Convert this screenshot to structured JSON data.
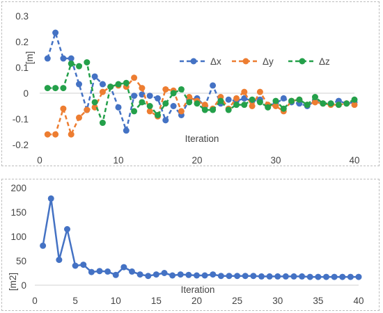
{
  "chart_data": [
    {
      "type": "line",
      "title": "",
      "xlabel": "Iteration",
      "ylabel": "[m]",
      "xlim": [
        0,
        40
      ],
      "ylim": [
        -0.2,
        0.3
      ],
      "xticks": [
        0,
        10,
        20,
        30,
        40
      ],
      "yticks": [
        -0.2,
        -0.1,
        0,
        0.1,
        0.2,
        0.3
      ],
      "ytick_labels": [
        "-0.2",
        "-0.1",
        "0",
        "0.1",
        "0.2",
        "0.3"
      ],
      "legend_position": "inside-right",
      "line_style": "dashed",
      "grid": false,
      "x": [
        1,
        2,
        3,
        4,
        5,
        6,
        7,
        8,
        9,
        10,
        11,
        12,
        13,
        14,
        15,
        16,
        17,
        18,
        19,
        20,
        21,
        22,
        23,
        24,
        25,
        26,
        27,
        28,
        29,
        30,
        31,
        32,
        33,
        34,
        35,
        36,
        37,
        38,
        39,
        40
      ],
      "series": [
        {
          "name": "Δx",
          "color": "#4472c4",
          "values": [
            0.135,
            0.235,
            0.135,
            0.135,
            0.035,
            -0.065,
            0.065,
            0.035,
            0.025,
            -0.055,
            -0.145,
            -0.01,
            -0.005,
            -0.01,
            -0.02,
            -0.105,
            -0.05,
            -0.085,
            -0.025,
            -0.02,
            -0.05,
            0.03,
            -0.04,
            -0.025,
            -0.03,
            -0.02,
            -0.03,
            -0.025,
            -0.05,
            -0.04,
            -0.02,
            -0.035,
            -0.04,
            -0.05,
            -0.03,
            -0.04,
            -0.04,
            -0.03,
            -0.04,
            -0.035
          ]
        },
        {
          "name": "Δy",
          "color": "#ed7d31",
          "values": [
            -0.16,
            -0.16,
            -0.06,
            -0.16,
            -0.095,
            -0.065,
            -0.055,
            0.005,
            0.025,
            0.03,
            0.025,
            0.06,
            0.02,
            -0.07,
            -0.09,
            0.015,
            0.01,
            -0.07,
            -0.015,
            -0.03,
            -0.045,
            -0.06,
            -0.015,
            -0.06,
            -0.02,
            0.005,
            -0.05,
            0.005,
            -0.045,
            -0.05,
            -0.07,
            -0.03,
            -0.025,
            -0.045,
            -0.035,
            -0.04,
            -0.045,
            -0.045,
            -0.04,
            -0.045
          ]
        },
        {
          "name": "Δz",
          "color": "#24a04a",
          "values": [
            0.02,
            0.02,
            0.02,
            0.115,
            0.105,
            0.12,
            -0.035,
            -0.115,
            0.025,
            0.035,
            0.04,
            -0.07,
            -0.035,
            -0.05,
            -0.085,
            -0.04,
            0.0,
            0.015,
            -0.035,
            -0.04,
            -0.065,
            -0.065,
            -0.03,
            -0.065,
            -0.045,
            -0.045,
            -0.025,
            -0.035,
            -0.055,
            -0.03,
            -0.06,
            -0.03,
            -0.025,
            -0.045,
            -0.015,
            -0.04,
            -0.04,
            -0.045,
            -0.04,
            -0.025
          ]
        }
      ]
    },
    {
      "type": "line",
      "title": "",
      "xlabel": "Iteration",
      "ylabel": "[m2]",
      "xlim": [
        0,
        40
      ],
      "ylim": [
        0,
        200
      ],
      "xticks": [
        0,
        5,
        10,
        15,
        20,
        25,
        30,
        35,
        40
      ],
      "yticks": [
        0,
        50,
        100,
        150,
        200
      ],
      "ytick_labels": [
        "0",
        "50",
        "100",
        "150",
        "200"
      ],
      "line_style": "solid",
      "grid": false,
      "x": [
        1,
        2,
        3,
        4,
        5,
        6,
        7,
        8,
        9,
        10,
        11,
        12,
        13,
        14,
        15,
        16,
        17,
        18,
        19,
        20,
        21,
        22,
        23,
        24,
        25,
        26,
        27,
        28,
        29,
        30,
        31,
        32,
        33,
        34,
        35,
        36,
        37,
        38,
        39,
        40
      ],
      "series": [
        {
          "color": "#4472c4",
          "values": [
            81,
            178,
            52,
            115,
            40,
            42,
            27,
            29,
            28,
            21,
            37,
            28,
            22,
            19,
            22,
            25,
            20,
            22,
            21,
            20,
            20,
            22,
            19,
            19,
            19,
            19,
            19,
            18,
            18,
            18,
            18,
            18,
            18,
            17,
            17,
            17,
            17,
            17,
            17,
            17
          ]
        }
      ]
    }
  ]
}
